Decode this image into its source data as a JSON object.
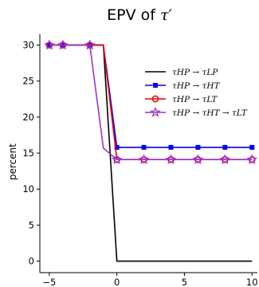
{
  "chart_data": {
    "type": "line",
    "title_main": "EPV of ",
    "title_symbol": "τ′",
    "xlabel": "",
    "ylabel": "percent",
    "xlim": [
      -5.7,
      10.4
    ],
    "ylim": [
      -1.6,
      31.5
    ],
    "xticks": [
      -5,
      0,
      5,
      10
    ],
    "xtick_labels": [
      "−5",
      "0",
      "5",
      "10"
    ],
    "yticks": [
      0,
      5,
      10,
      15,
      20,
      25,
      30
    ],
    "ytick_labels": [
      "0",
      "5",
      "10",
      "15",
      "20",
      "25",
      "30"
    ],
    "grid": false,
    "legend_position": "right",
    "series": [
      {
        "name": "τHP → τLP",
        "color": "#000000",
        "marker": "none",
        "x": [
          -5,
          -4,
          -3,
          -2,
          -1,
          0,
          2,
          4,
          6,
          8,
          10
        ],
        "y": [
          30,
          30,
          30,
          30,
          30,
          0,
          0,
          0,
          0,
          0,
          0
        ]
      },
      {
        "name": "τHP → τHT",
        "color": "#0000ee",
        "marker": "square",
        "x": [
          -5,
          -4,
          -3,
          -2,
          -1,
          0,
          2,
          4,
          6,
          8,
          10
        ],
        "y": [
          30,
          30,
          30,
          30,
          30,
          15.8,
          15.8,
          15.8,
          15.8,
          15.8,
          15.8
        ],
        "marker_x": [
          -5,
          -4,
          -2,
          0,
          2,
          4,
          6,
          8,
          10
        ]
      },
      {
        "name": "τHP → τLT",
        "color": "#ee0000",
        "marker": "circle",
        "x": [
          -5,
          -4,
          -3,
          -2,
          -1,
          0,
          2,
          4,
          6,
          8,
          10
        ],
        "y": [
          30,
          30,
          30,
          30,
          30,
          14.1,
          14.1,
          14.1,
          14.1,
          14.1,
          14.1
        ],
        "marker_x": [
          -5,
          -4,
          -2,
          0,
          2,
          4,
          6,
          8,
          10
        ]
      },
      {
        "name": "τHP → τHT → τLT",
        "color": "#9933cc",
        "marker": "star",
        "x": [
          -5,
          -4,
          -3,
          -2,
          -1,
          0,
          2,
          4,
          6,
          8,
          10
        ],
        "y": [
          30,
          30,
          30,
          30,
          15.7,
          14.1,
          14.1,
          14.1,
          14.1,
          14.1,
          14.1
        ],
        "marker_x": [
          -5,
          -4,
          -2,
          0,
          2,
          4,
          6,
          8,
          10
        ]
      }
    ]
  }
}
